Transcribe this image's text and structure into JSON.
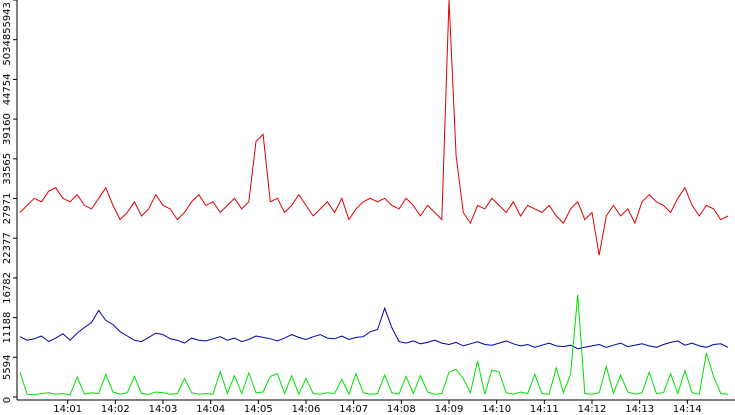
{
  "chart_data": {
    "type": "line",
    "x": [
      0,
      0.15,
      0.3,
      0.45,
      0.6,
      0.75,
      0.9,
      1.05,
      1.2,
      1.35,
      1.5,
      1.65,
      1.8,
      1.95,
      2.1,
      2.25,
      2.4,
      2.55,
      2.7,
      2.85,
      3,
      3.15,
      3.3,
      3.45,
      3.6,
      3.75,
      3.9,
      4.05,
      4.2,
      4.35,
      4.5,
      4.65,
      4.8,
      4.95,
      5.1,
      5.25,
      5.4,
      5.55,
      5.7,
      5.85,
      6,
      6.15,
      6.3,
      6.45,
      6.6,
      6.75,
      6.9,
      7.05,
      7.2,
      7.35,
      7.5,
      7.65,
      7.8,
      7.95,
      8.1,
      8.25,
      8.4,
      8.55,
      8.7,
      8.85,
      9,
      9.15,
      9.3,
      9.45,
      9.6,
      9.75,
      9.9,
      10.05,
      10.2,
      10.35,
      10.5,
      10.65,
      10.8,
      10.95,
      11.1,
      11.25,
      11.4,
      11.55,
      11.7,
      11.85,
      12,
      12.15,
      12.3,
      12.45,
      12.6,
      12.75,
      12.9,
      13.05,
      13.2,
      13.35,
      13.5,
      13.65,
      13.8,
      13.95,
      14.1,
      14.25,
      14.4,
      14.55,
      14.7,
      14.85
    ],
    "series": [
      {
        "color": "#e00000",
        "values": [
          26000,
          27000,
          28000,
          27500,
          29000,
          29500,
          28000,
          27500,
          28500,
          27000,
          26500,
          28000,
          29500,
          27000,
          25000,
          26000,
          27500,
          25500,
          26500,
          28500,
          27000,
          26500,
          25000,
          26000,
          27500,
          28500,
          27000,
          27500,
          26000,
          27000,
          28000,
          26500,
          27500,
          36000,
          37000,
          27500,
          28000,
          26000,
          27000,
          28500,
          27000,
          25500,
          26500,
          27500,
          26000,
          28000,
          25000,
          26500,
          27500,
          28000,
          27500,
          28000,
          27000,
          26500,
          28000,
          27000,
          25500,
          27000,
          26000,
          25000,
          55943,
          34000,
          26000,
          24500,
          27000,
          26500,
          28000,
          27000,
          26000,
          27500,
          25500,
          27000,
          26500,
          26000,
          27000,
          25500,
          24500,
          26500,
          27500,
          25000,
          26000,
          20000,
          25500,
          27000,
          25500,
          26500,
          24500,
          27500,
          28500,
          27500,
          27000,
          26000,
          28000,
          29500,
          27000,
          25500,
          27000,
          26500,
          25000,
          25500
        ]
      },
      {
        "color": "#0000b0",
        "values": [
          8500,
          8000,
          8200,
          8600,
          7800,
          8300,
          8900,
          8000,
          9000,
          9800,
          10500,
          12200,
          10800,
          10200,
          9200,
          8600,
          8000,
          7800,
          8400,
          9000,
          8800,
          8200,
          8000,
          7600,
          8300,
          8000,
          7900,
          8200,
          8500,
          8000,
          8300,
          7800,
          8100,
          8600,
          8400,
          8200,
          7900,
          8300,
          8800,
          8400,
          8100,
          8500,
          8800,
          8300,
          8200,
          8600,
          8100,
          8400,
          8500,
          9200,
          9500,
          12500,
          9800,
          7800,
          7600,
          7900,
          7500,
          7700,
          8000,
          7600,
          7400,
          7700,
          7200,
          7500,
          7800,
          7400,
          7300,
          7600,
          7900,
          7500,
          7200,
          7400,
          7000,
          7300,
          7600,
          7200,
          7100,
          7300,
          6800,
          7000,
          7200,
          7400,
          7000,
          7300,
          7600,
          7100,
          7300,
          7500,
          7200,
          7000,
          7400,
          7700,
          7900,
          7300,
          7600,
          7200,
          7000,
          7400,
          7500,
          7000
        ]
      },
      {
        "color": "#00e000",
        "values": [
          3500,
          400,
          300,
          500,
          600,
          400,
          500,
          300,
          2800,
          400,
          600,
          500,
          3200,
          700,
          400,
          600,
          2900,
          500,
          400,
          700,
          600,
          400,
          500,
          2600,
          600,
          400,
          500,
          400,
          3600,
          500,
          3000,
          500,
          3400,
          600,
          700,
          2900,
          3300,
          500,
          3000,
          400,
          2600,
          500,
          400,
          600,
          500,
          2500,
          400,
          3300,
          600,
          400,
          500,
          3100,
          600,
          400,
          2900,
          500,
          3000,
          700,
          400,
          500,
          3500,
          3900,
          2600,
          600,
          5100,
          400,
          3800,
          3500,
          600,
          400,
          700,
          500,
          3200,
          500,
          400,
          4100,
          600,
          3200,
          14400,
          500,
          400,
          600,
          4300,
          500,
          3100,
          700,
          400,
          600,
          3500,
          500,
          600,
          3300,
          500,
          3700,
          600,
          400,
          6200,
          2900,
          500,
          400
        ]
      }
    ],
    "xlim": [
      0,
      15
    ],
    "xticks": [
      {
        "value": 1,
        "label": "14:01"
      },
      {
        "value": 2,
        "label": "14:02"
      },
      {
        "value": 3,
        "label": "14:03"
      },
      {
        "value": 4,
        "label": "14:04"
      },
      {
        "value": 5,
        "label": "14:05"
      },
      {
        "value": 6,
        "label": "14:06"
      },
      {
        "value": 7,
        "label": "14:07"
      },
      {
        "value": 8,
        "label": "14:08"
      },
      {
        "value": 9,
        "label": "14:09"
      },
      {
        "value": 10,
        "label": "14:10"
      },
      {
        "value": 11,
        "label": "14:11"
      },
      {
        "value": 12,
        "label": "14:12"
      },
      {
        "value": 13,
        "label": "14:13"
      },
      {
        "value": 14,
        "label": "14:14"
      }
    ],
    "ylim": [
      0,
      55943
    ],
    "yticks": [
      0,
      5594,
      11188,
      16782,
      22377,
      27971,
      33565,
      39160,
      44754,
      50348,
      55943
    ]
  }
}
